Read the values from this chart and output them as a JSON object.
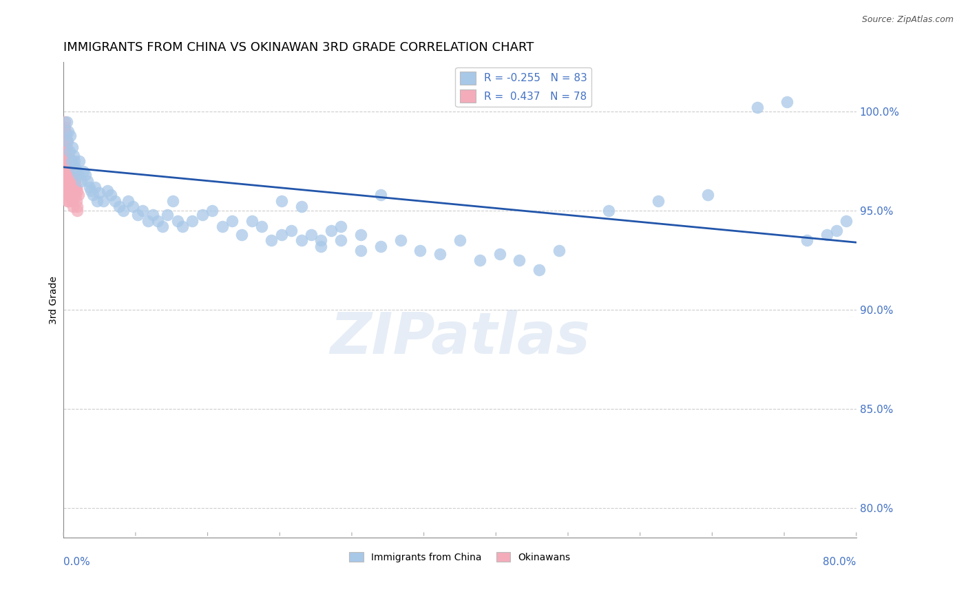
{
  "title": "IMMIGRANTS FROM CHINA VS OKINAWAN 3RD GRADE CORRELATION CHART",
  "source": "Source: ZipAtlas.com",
  "ylabel": "3rd Grade",
  "right_yticks": [
    80.0,
    85.0,
    90.0,
    95.0,
    100.0
  ],
  "xmin": 0.0,
  "xmax": 80.0,
  "ymin": 78.5,
  "ymax": 102.5,
  "legend_blue_r": "-0.255",
  "legend_blue_n": "83",
  "legend_pink_r": "0.437",
  "legend_pink_n": "78",
  "trendline_x": [
    0.0,
    80.0
  ],
  "trendline_y": [
    97.2,
    93.4
  ],
  "blue_color": "#A8C8E8",
  "pink_color": "#F4ACBA",
  "trendline_color": "#2255AA",
  "blue_scatter_x": [
    0.4,
    0.6,
    0.8,
    1.0,
    1.2,
    1.4,
    1.5,
    1.6,
    1.8,
    2.0,
    2.2,
    2.4,
    2.6,
    2.8,
    3.0,
    3.2,
    3.4,
    3.6,
    4.0,
    4.4,
    4.8,
    5.2,
    5.6,
    6.0,
    6.5,
    7.0,
    7.5,
    8.0,
    8.5,
    9.0,
    9.5,
    10.0,
    10.5,
    11.0,
    11.5,
    12.0,
    13.0,
    14.0,
    15.0,
    16.0,
    17.0,
    18.0,
    19.0,
    20.0,
    21.0,
    22.0,
    23.0,
    24.0,
    25.0,
    26.0,
    27.0,
    28.0,
    30.0,
    32.0,
    34.0,
    36.0,
    38.0,
    40.0,
    42.0,
    44.0,
    22.0,
    24.0,
    26.0,
    28.0,
    30.0,
    32.0,
    46.0,
    48.0,
    50.0,
    55.0,
    60.0,
    65.0,
    70.0,
    73.0,
    75.0,
    77.0,
    78.0,
    79.0,
    0.3,
    0.5,
    0.7,
    0.9,
    1.1
  ],
  "blue_scatter_y": [
    98.5,
    98.0,
    97.5,
    97.8,
    97.2,
    97.0,
    96.8,
    97.5,
    96.5,
    97.0,
    96.8,
    96.5,
    96.2,
    96.0,
    95.8,
    96.2,
    95.5,
    95.9,
    95.5,
    96.0,
    95.8,
    95.5,
    95.2,
    95.0,
    95.5,
    95.2,
    94.8,
    95.0,
    94.5,
    94.8,
    94.5,
    94.2,
    94.8,
    95.5,
    94.5,
    94.2,
    94.5,
    94.8,
    95.0,
    94.2,
    94.5,
    93.8,
    94.5,
    94.2,
    93.5,
    93.8,
    94.0,
    93.5,
    93.8,
    93.2,
    94.0,
    93.5,
    93.8,
    93.2,
    93.5,
    93.0,
    92.8,
    93.5,
    92.5,
    92.8,
    95.5,
    95.2,
    93.5,
    94.2,
    93.0,
    95.8,
    92.5,
    92.0,
    93.0,
    95.0,
    95.5,
    95.8,
    100.2,
    100.5,
    93.5,
    93.8,
    94.0,
    94.5,
    99.5,
    99.0,
    98.8,
    98.2,
    97.5
  ],
  "pink_scatter_x": [
    0.05,
    0.08,
    0.1,
    0.12,
    0.15,
    0.18,
    0.2,
    0.22,
    0.25,
    0.28,
    0.3,
    0.32,
    0.35,
    0.38,
    0.4,
    0.42,
    0.45,
    0.48,
    0.5,
    0.55,
    0.6,
    0.65,
    0.7,
    0.75,
    0.8,
    0.85,
    0.9,
    0.95,
    1.0,
    1.1,
    1.2,
    1.3,
    1.4,
    1.5,
    0.15,
    0.2,
    0.25,
    0.3,
    0.35,
    0.4,
    0.45,
    0.5,
    0.55,
    0.6,
    0.65,
    0.7,
    0.75,
    0.8,
    0.85,
    0.9,
    0.95,
    1.0,
    1.05,
    1.1,
    1.15,
    1.2,
    1.25,
    1.3,
    1.35,
    1.4,
    0.1,
    0.15,
    0.2,
    0.25,
    0.3,
    0.35,
    0.4,
    0.45,
    0.5,
    0.55,
    0.6,
    0.65,
    0.7,
    0.75,
    0.8,
    0.85,
    0.9,
    0.95
  ],
  "pink_scatter_y": [
    97.5,
    97.2,
    96.8,
    97.0,
    97.5,
    96.5,
    97.2,
    97.0,
    96.8,
    96.5,
    96.2,
    96.0,
    95.8,
    95.5,
    96.2,
    96.0,
    95.8,
    95.5,
    97.0,
    97.2,
    96.8,
    96.5,
    96.2,
    96.0,
    95.8,
    95.5,
    97.5,
    97.2,
    96.8,
    97.0,
    96.5,
    96.2,
    96.0,
    95.8,
    98.5,
    98.2,
    98.0,
    97.8,
    97.5,
    97.2,
    97.0,
    96.8,
    96.5,
    96.2,
    96.0,
    95.8,
    96.5,
    96.2,
    96.0,
    95.8,
    96.5,
    97.0,
    96.8,
    96.5,
    96.2,
    96.0,
    95.8,
    95.5,
    95.2,
    95.0,
    99.5,
    99.2,
    99.0,
    98.8,
    98.5,
    98.2,
    98.0,
    97.8,
    97.5,
    97.2,
    97.0,
    96.8,
    96.5,
    96.2,
    96.0,
    95.8,
    95.5,
    95.2
  ],
  "watermark_text": "ZIPatlas",
  "title_fontsize": 13,
  "axis_label_fontsize": 10,
  "legend_fontsize": 11,
  "right_tick_color": "#4472C4",
  "xlabel_color": "#4472C4"
}
